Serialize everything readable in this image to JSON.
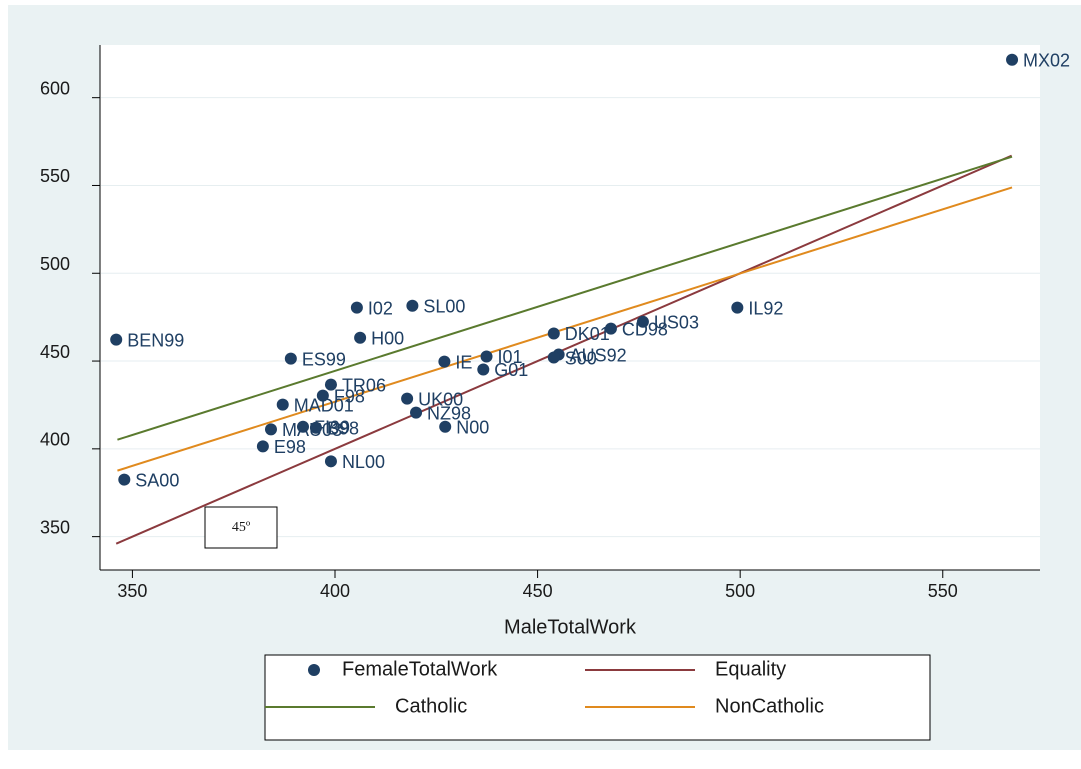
{
  "chart_data": {
    "type": "scatter",
    "x_label": "MaleTotalWork",
    "xlim": [
      342,
      574
    ],
    "ylim": [
      331,
      630
    ],
    "xticks": [
      350,
      400,
      450,
      500,
      550
    ],
    "yticks": [
      350,
      400,
      450,
      500,
      550,
      600
    ],
    "grid": true,
    "annotation": "45º",
    "series": [
      {
        "name": "FemaleTotalWork",
        "type": "scatter",
        "color": "#1f3f63",
        "labels": [
          "MX02",
          "IL92",
          "US03",
          "CD98",
          "DK01",
          "AUS92",
          "S00",
          "I01",
          "G01",
          "IE",
          "SL00",
          "I02",
          "H00",
          "BEN99",
          "ES99",
          "TR06",
          "F98",
          "MAD01",
          "UK00",
          "NZ98",
          "N00",
          "MAU03",
          "FI99",
          "B98",
          "E98",
          "NL00",
          "SA00"
        ],
        "x": [
          567.1,
          499.3,
          476.0,
          468.1,
          454.0,
          455.2,
          454.0,
          437.4,
          436.6,
          427.0,
          419.1,
          405.4,
          406.2,
          346.0,
          389.1,
          399.0,
          397.0,
          387.1,
          417.8,
          420.0,
          427.2,
          384.2,
          392.1,
          395.3,
          382.2,
          399.0,
          348.0
        ],
        "values": [
          621.6,
          480.4,
          472.4,
          468.5,
          465.7,
          453.7,
          452.0,
          452.6,
          445.2,
          449.7,
          481.5,
          480.4,
          463.3,
          462.2,
          451.4,
          436.6,
          430.3,
          425.2,
          428.6,
          420.6,
          412.6,
          411.1,
          412.6,
          412.0,
          401.4,
          392.9,
          382.5
        ]
      },
      {
        "name": "Equality",
        "type": "line",
        "color": "#8b3a3e",
        "x": [
          346,
          567
        ],
        "values": [
          346,
          567
        ]
      },
      {
        "name": "Catholic",
        "type": "line",
        "color": "#5a7a2e",
        "x": [
          346.3,
          567.1
        ],
        "values": [
          405.2,
          566.4
        ]
      },
      {
        "name": "NonCatholic",
        "type": "line",
        "color": "#e08a1e",
        "x": [
          346.3,
          567.1
        ],
        "values": [
          387.6,
          548.9
        ]
      }
    ]
  }
}
